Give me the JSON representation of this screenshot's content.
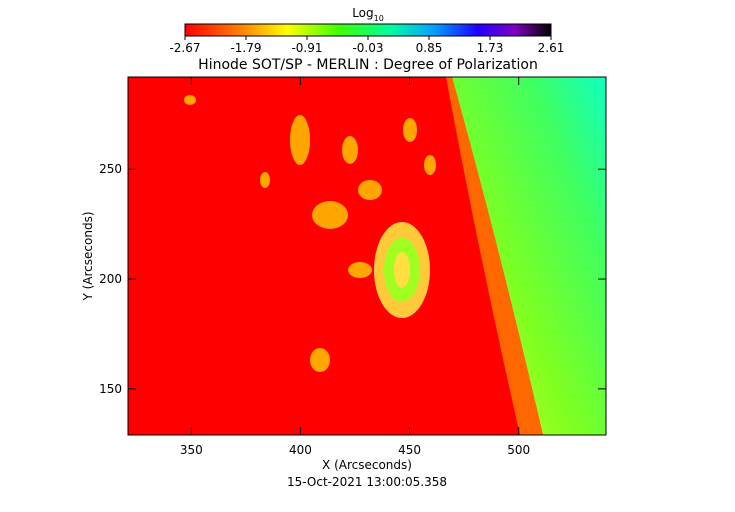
{
  "chart_data": {
    "type": "image",
    "title": "Hinode SOT/SP - MERLIN : Degree of Polarization",
    "x_label": "X (Arcseconds)",
    "y_label": "Y (Arcseconds)",
    "date": "15-Oct-2021 13:00:05.358",
    "colorbar_label": "Log",
    "colorbar_label_subscript": "10",
    "clim": [
      -2.67,
      2.61
    ],
    "cticks": [
      -2.67,
      -1.79,
      -0.91,
      -0.03,
      0.85,
      1.73,
      2.61
    ],
    "xlim": [
      321,
      540
    ],
    "xticks": [
      350,
      400,
      450,
      500
    ],
    "ylim": [
      129,
      292
    ],
    "yticks": [
      150,
      200,
      250
    ]
  }
}
